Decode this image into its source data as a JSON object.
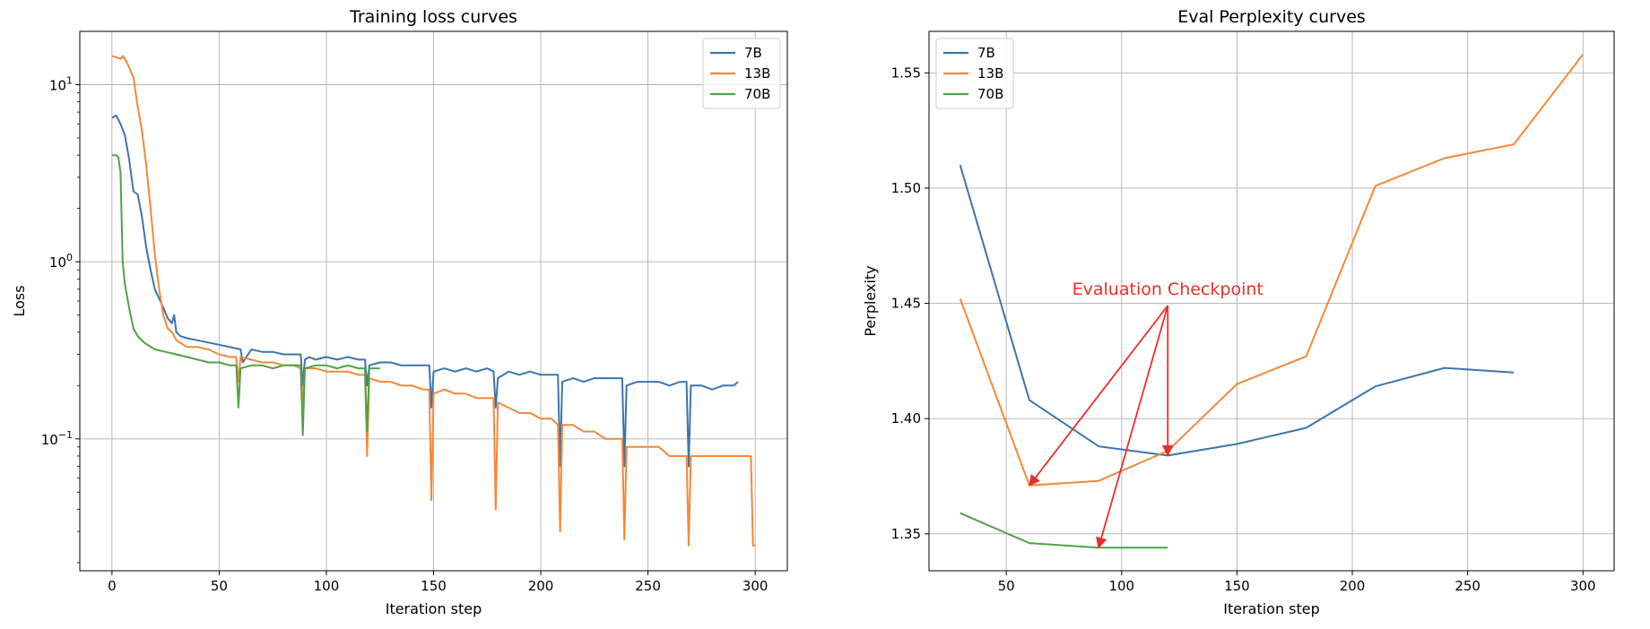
{
  "chart_data": [
    {
      "type": "line",
      "title": "Training loss curves",
      "xlabel": "Iteration step",
      "ylabel": "Loss",
      "yscale": "log",
      "xlim": [
        -15,
        315
      ],
      "ylim": [
        0.018,
        20
      ],
      "xticks": [
        0,
        50,
        100,
        150,
        200,
        250,
        300
      ],
      "yticks": [
        {
          "v": 10,
          "label": "10",
          "exp": "1"
        },
        {
          "v": 1,
          "label": "10",
          "exp": "0"
        },
        {
          "v": 0.1,
          "label": "10",
          "exp": "−1"
        }
      ],
      "grid": true,
      "legend": "top-right",
      "series": [
        {
          "name": "7B",
          "color": "#3b75af",
          "x": [
            0,
            2,
            4,
            6,
            8,
            10,
            12,
            14,
            16,
            18,
            20,
            22,
            24,
            26,
            28,
            29,
            30,
            32,
            35,
            40,
            45,
            50,
            55,
            60,
            61,
            65,
            70,
            75,
            80,
            85,
            88,
            89,
            90,
            92,
            95,
            100,
            105,
            110,
            115,
            118,
            119,
            120,
            125,
            130,
            135,
            140,
            145,
            148,
            149,
            150,
            155,
            160,
            165,
            170,
            175,
            178,
            179,
            180,
            185,
            190,
            195,
            200,
            205,
            208,
            209,
            210,
            215,
            220,
            225,
            230,
            235,
            238,
            239,
            240,
            245,
            250,
            255,
            260,
            265,
            268,
            269,
            270,
            275,
            280,
            285,
            290,
            292
          ],
          "values": [
            6.5,
            6.7,
            6.0,
            5.2,
            3.8,
            2.5,
            2.4,
            1.8,
            1.2,
            0.9,
            0.7,
            0.62,
            0.55,
            0.48,
            0.45,
            0.5,
            0.4,
            0.38,
            0.37,
            0.36,
            0.35,
            0.34,
            0.33,
            0.32,
            0.27,
            0.32,
            0.31,
            0.31,
            0.3,
            0.3,
            0.3,
            0.2,
            0.28,
            0.29,
            0.28,
            0.29,
            0.28,
            0.29,
            0.28,
            0.28,
            0.2,
            0.26,
            0.27,
            0.27,
            0.26,
            0.26,
            0.26,
            0.26,
            0.15,
            0.24,
            0.25,
            0.24,
            0.25,
            0.24,
            0.25,
            0.24,
            0.15,
            0.22,
            0.24,
            0.23,
            0.24,
            0.23,
            0.23,
            0.23,
            0.07,
            0.21,
            0.22,
            0.21,
            0.22,
            0.22,
            0.22,
            0.22,
            0.07,
            0.2,
            0.21,
            0.21,
            0.21,
            0.2,
            0.21,
            0.21,
            0.07,
            0.2,
            0.2,
            0.19,
            0.2,
            0.2,
            0.21
          ]
        },
        {
          "name": "13B",
          "color": "#f4883a",
          "x": [
            0,
            2,
            4,
            5,
            6,
            8,
            10,
            12,
            14,
            16,
            18,
            20,
            22,
            24,
            26,
            28,
            30,
            35,
            40,
            45,
            50,
            55,
            58,
            59,
            60,
            65,
            70,
            75,
            80,
            85,
            88,
            89,
            90,
            95,
            100,
            105,
            110,
            115,
            118,
            119,
            120,
            125,
            130,
            135,
            140,
            145,
            148,
            149,
            150,
            155,
            160,
            165,
            170,
            175,
            178,
            179,
            180,
            185,
            190,
            195,
            200,
            205,
            208,
            209,
            210,
            215,
            220,
            225,
            230,
            235,
            238,
            239,
            240,
            245,
            250,
            255,
            260,
            265,
            268,
            269,
            270,
            275,
            280,
            285,
            290,
            295,
            298,
            299,
            300
          ],
          "values": [
            14.5,
            14.3,
            14.0,
            14.5,
            14.0,
            12.5,
            11.0,
            7.5,
            5.5,
            3.5,
            2.0,
            1.1,
            0.7,
            0.5,
            0.42,
            0.4,
            0.36,
            0.33,
            0.33,
            0.32,
            0.3,
            0.29,
            0.29,
            0.21,
            0.29,
            0.28,
            0.27,
            0.27,
            0.26,
            0.26,
            0.25,
            0.15,
            0.25,
            0.25,
            0.24,
            0.24,
            0.24,
            0.23,
            0.23,
            0.08,
            0.22,
            0.21,
            0.21,
            0.2,
            0.2,
            0.19,
            0.19,
            0.045,
            0.18,
            0.19,
            0.18,
            0.18,
            0.17,
            0.17,
            0.17,
            0.04,
            0.16,
            0.15,
            0.14,
            0.14,
            0.13,
            0.13,
            0.12,
            0.03,
            0.12,
            0.12,
            0.11,
            0.11,
            0.1,
            0.1,
            0.1,
            0.027,
            0.09,
            0.09,
            0.09,
            0.09,
            0.08,
            0.08,
            0.08,
            0.025,
            0.08,
            0.08,
            0.08,
            0.08,
            0.08,
            0.08,
            0.08,
            0.025,
            0.025
          ]
        },
        {
          "name": "70B",
          "color": "#4fa443",
          "x": [
            0,
            2,
            3,
            4,
            5,
            6,
            8,
            10,
            12,
            15,
            20,
            25,
            30,
            35,
            40,
            45,
            50,
            55,
            58,
            59,
            60,
            65,
            70,
            75,
            80,
            85,
            88,
            89,
            90,
            95,
            100,
            105,
            110,
            115,
            118,
            119,
            120,
            125
          ],
          "values": [
            4.0,
            4.0,
            3.9,
            3.2,
            1.0,
            0.75,
            0.55,
            0.42,
            0.38,
            0.35,
            0.32,
            0.31,
            0.3,
            0.29,
            0.28,
            0.27,
            0.27,
            0.26,
            0.26,
            0.15,
            0.25,
            0.26,
            0.26,
            0.25,
            0.26,
            0.26,
            0.26,
            0.105,
            0.25,
            0.26,
            0.26,
            0.25,
            0.26,
            0.25,
            0.25,
            0.11,
            0.25,
            0.25
          ]
        }
      ]
    },
    {
      "type": "line",
      "title": "Eval Perplexity curves",
      "xlabel": "Iteration step",
      "ylabel": "Perplexity",
      "xlim": [
        16.5,
        313.5
      ],
      "ylim": [
        1.334,
        1.568
      ],
      "xticks": [
        50,
        100,
        150,
        200,
        250,
        300
      ],
      "yticks": [
        1.35,
        1.4,
        1.45,
        1.5,
        1.55
      ],
      "ytick_labels": [
        "1.35",
        "1.40",
        "1.45",
        "1.50",
        "1.55"
      ],
      "grid": true,
      "legend": "top-left",
      "series": [
        {
          "name": "7B",
          "color": "#3b75af",
          "x": [
            30,
            60,
            90,
            120,
            150,
            180,
            210,
            240,
            270
          ],
          "values": [
            1.51,
            1.408,
            1.388,
            1.384,
            1.389,
            1.396,
            1.414,
            1.422,
            1.42
          ]
        },
        {
          "name": "13B",
          "color": "#f4883a",
          "x": [
            30,
            60,
            90,
            120,
            150,
            180,
            210,
            240,
            270,
            300
          ],
          "values": [
            1.452,
            1.371,
            1.373,
            1.386,
            1.415,
            1.427,
            1.501,
            1.513,
            1.519,
            1.558
          ]
        },
        {
          "name": "70B",
          "color": "#4fa443",
          "x": [
            30,
            60,
            90,
            120
          ],
          "values": [
            1.359,
            1.346,
            1.344,
            1.344
          ]
        }
      ],
      "annotation": {
        "text": "Evaluation Checkpoint",
        "color": "#e8302b",
        "from": [
          120,
          1.449
        ],
        "targets": [
          [
            60,
            1.371
          ],
          [
            120,
            1.384
          ],
          [
            90,
            1.344
          ]
        ]
      }
    }
  ]
}
